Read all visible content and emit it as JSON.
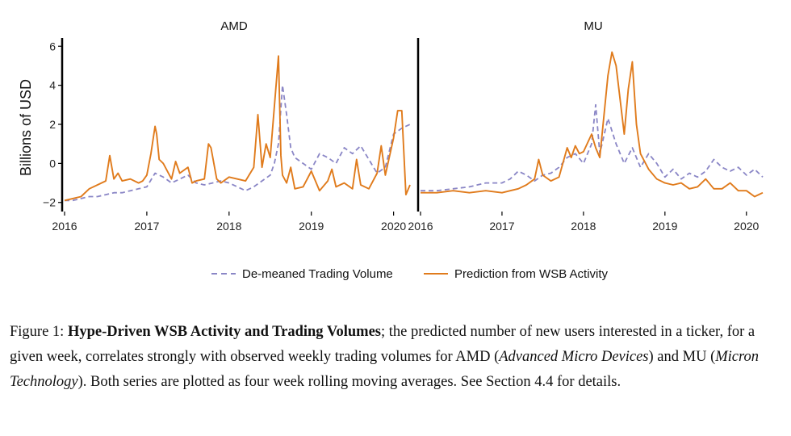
{
  "colors": {
    "volume": "#8a86c6",
    "prediction": "#e07b1c",
    "axis": "#000000"
  },
  "chart_data": [
    {
      "type": "line",
      "title": "AMD",
      "ylabel": "Billions of USD",
      "xlim": [
        2016.0,
        2020.2
      ],
      "ylim": [
        -2.3,
        6.3
      ],
      "x_ticks": [
        2016,
        2017,
        2018,
        2019,
        2020
      ],
      "x_tick_labels": [
        "2016",
        "2017",
        "2018",
        "2019",
        "2020"
      ],
      "y_ticks": [
        -2,
        0,
        2,
        4,
        6
      ],
      "y_tick_labels": [
        "−2",
        "0",
        "2",
        "4",
        "6"
      ],
      "series": [
        {
          "name": "De-meaned Trading Volume",
          "style": "dashed",
          "x": [
            2016.0,
            2016.1,
            2016.2,
            2016.3,
            2016.4,
            2016.5,
            2016.6,
            2016.7,
            2016.8,
            2016.9,
            2017.0,
            2017.1,
            2017.2,
            2017.3,
            2017.4,
            2017.5,
            2017.6,
            2017.7,
            2017.8,
            2017.9,
            2018.0,
            2018.1,
            2018.2,
            2018.3,
            2018.4,
            2018.5,
            2018.55,
            2018.6,
            2018.65,
            2018.7,
            2018.75,
            2018.8,
            2018.9,
            2019.0,
            2019.1,
            2019.2,
            2019.3,
            2019.4,
            2019.5,
            2019.6,
            2019.7,
            2019.8,
            2019.9,
            2020.0,
            2020.1,
            2020.2
          ],
          "y": [
            -1.9,
            -1.9,
            -1.8,
            -1.7,
            -1.7,
            -1.6,
            -1.5,
            -1.5,
            -1.4,
            -1.3,
            -1.2,
            -0.5,
            -0.7,
            -1.0,
            -0.8,
            -0.6,
            -1.0,
            -1.1,
            -1.0,
            -0.9,
            -1.0,
            -1.2,
            -1.4,
            -1.2,
            -0.9,
            -0.6,
            0.0,
            1.0,
            4.0,
            2.5,
            0.8,
            0.3,
            0.0,
            -0.3,
            0.5,
            0.3,
            0.0,
            0.8,
            0.5,
            0.9,
            0.2,
            -0.5,
            -0.2,
            1.5,
            1.8,
            2.0
          ]
        },
        {
          "name": "Prediction from WSB Activity",
          "style": "solid",
          "x": [
            2016.0,
            2016.1,
            2016.2,
            2016.3,
            2016.4,
            2016.5,
            2016.55,
            2016.6,
            2016.65,
            2016.7,
            2016.8,
            2016.9,
            2016.95,
            2017.0,
            2017.05,
            2017.1,
            2017.12,
            2017.15,
            2017.2,
            2017.3,
            2017.35,
            2017.4,
            2017.5,
            2017.55,
            2017.6,
            2017.7,
            2017.75,
            2017.78,
            2017.85,
            2017.9,
            2018.0,
            2018.1,
            2018.2,
            2018.3,
            2018.35,
            2018.4,
            2018.45,
            2018.5,
            2018.6,
            2018.63,
            2018.65,
            2018.7,
            2018.75,
            2018.8,
            2018.9,
            2019.0,
            2019.1,
            2019.2,
            2019.25,
            2019.3,
            2019.4,
            2019.5,
            2019.55,
            2019.6,
            2019.7,
            2019.8,
            2019.85,
            2019.9,
            2020.0,
            2020.05,
            2020.1,
            2020.15,
            2020.2
          ],
          "y": [
            -1.9,
            -1.8,
            -1.7,
            -1.3,
            -1.1,
            -0.9,
            0.4,
            -0.8,
            -0.5,
            -0.9,
            -0.8,
            -1.0,
            -0.9,
            -0.6,
            0.5,
            1.9,
            1.5,
            0.2,
            0.0,
            -0.8,
            0.1,
            -0.5,
            -0.2,
            -1.0,
            -0.9,
            -0.8,
            1.0,
            0.8,
            -0.8,
            -1.0,
            -0.7,
            -0.8,
            -0.9,
            -0.2,
            2.5,
            -0.2,
            1.0,
            0.3,
            5.5,
            0.4,
            -0.6,
            -1.0,
            -0.2,
            -1.3,
            -1.2,
            -0.4,
            -1.4,
            -0.9,
            -0.3,
            -1.2,
            -1.0,
            -1.3,
            0.2,
            -1.1,
            -1.3,
            -0.5,
            0.9,
            -0.6,
            1.3,
            2.7,
            2.7,
            -1.6,
            -1.1
          ]
        }
      ]
    },
    {
      "type": "line",
      "title": "MU",
      "xlim": [
        2016.0,
        2020.25
      ],
      "ylim": [
        -2.3,
        6.3
      ],
      "x_ticks": [
        2016,
        2017,
        2018,
        2019,
        2020
      ],
      "x_tick_labels": [
        "2016",
        "2017",
        "2018",
        "2019",
        "2020"
      ],
      "series": [
        {
          "name": "De-meaned Trading Volume",
          "style": "dashed",
          "x": [
            2016.0,
            2016.2,
            2016.4,
            2016.6,
            2016.8,
            2017.0,
            2017.1,
            2017.2,
            2017.3,
            2017.4,
            2017.5,
            2017.6,
            2017.7,
            2017.8,
            2017.9,
            2018.0,
            2018.1,
            2018.15,
            2018.2,
            2018.3,
            2018.4,
            2018.5,
            2018.6,
            2018.7,
            2018.8,
            2018.9,
            2019.0,
            2019.1,
            2019.2,
            2019.3,
            2019.4,
            2019.5,
            2019.6,
            2019.7,
            2019.8,
            2019.9,
            2020.0,
            2020.1,
            2020.2
          ],
          "y": [
            -1.4,
            -1.4,
            -1.3,
            -1.2,
            -1.0,
            -1.0,
            -0.8,
            -0.4,
            -0.6,
            -0.9,
            -0.6,
            -0.5,
            -0.2,
            0.3,
            0.5,
            0.0,
            1.0,
            3.0,
            0.5,
            2.3,
            1.0,
            0.0,
            0.8,
            -0.2,
            0.5,
            0.0,
            -0.7,
            -0.3,
            -0.8,
            -0.5,
            -0.7,
            -0.4,
            0.2,
            -0.2,
            -0.4,
            -0.2,
            -0.6,
            -0.3,
            -0.7
          ]
        },
        {
          "name": "Prediction from WSB Activity",
          "style": "solid",
          "x": [
            2016.0,
            2016.2,
            2016.4,
            2016.6,
            2016.8,
            2017.0,
            2017.2,
            2017.3,
            2017.4,
            2017.45,
            2017.5,
            2017.6,
            2017.7,
            2017.8,
            2017.85,
            2017.9,
            2017.95,
            2018.0,
            2018.1,
            2018.15,
            2018.2,
            2018.3,
            2018.35,
            2018.4,
            2018.5,
            2018.55,
            2018.6,
            2018.65,
            2018.7,
            2018.8,
            2018.9,
            2019.0,
            2019.1,
            2019.2,
            2019.3,
            2019.4,
            2019.5,
            2019.6,
            2019.7,
            2019.8,
            2019.9,
            2020.0,
            2020.1,
            2020.15,
            2020.2
          ],
          "y": [
            -1.5,
            -1.5,
            -1.4,
            -1.5,
            -1.4,
            -1.5,
            -1.3,
            -1.1,
            -0.8,
            0.2,
            -0.6,
            -0.9,
            -0.7,
            0.8,
            0.3,
            0.9,
            0.5,
            0.6,
            1.5,
            0.8,
            0.3,
            4.5,
            5.7,
            5.0,
            1.5,
            3.8,
            5.2,
            2.0,
            0.5,
            -0.3,
            -0.8,
            -1.0,
            -1.1,
            -1.0,
            -1.3,
            -1.2,
            -0.8,
            -1.3,
            -1.3,
            -1.0,
            -1.4,
            -1.4,
            -1.7,
            -1.6,
            -1.5
          ]
        }
      ]
    }
  ],
  "legend": {
    "volume_label": "De-meaned Trading Volume",
    "prediction_label": "Prediction from WSB Activity"
  },
  "caption": {
    "prefix": "Figure 1: ",
    "bold": "Hype-Driven WSB Activity and Trading Volumes",
    "part1": "; the predicted number of new users interested in a ticker, for a given week, correlates strongly with observed weekly trading volumes for AMD (",
    "italic1": "Advanced Micro Devices",
    "part2": ") and MU (",
    "italic2": "Micron Technology",
    "part3": "). Both series are plotted as four week rolling moving averages. See Section 4.4 for details."
  }
}
